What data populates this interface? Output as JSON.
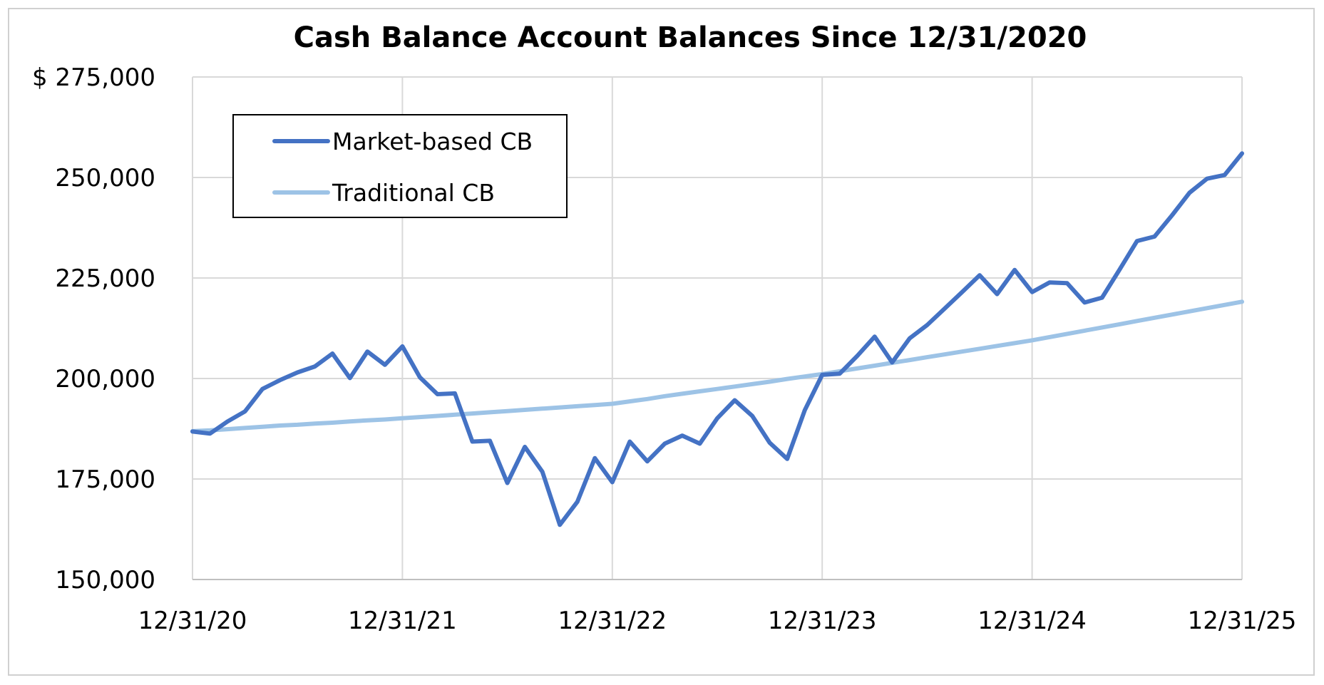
{
  "chart_data": {
    "type": "line",
    "title": "Cash Balance Account Balances Since 12/31/2020",
    "xlabel": "",
    "ylabel": "",
    "y_tick_labels": [
      "$ 275,000",
      "250,000",
      "225,000",
      "200,000",
      "175,000",
      "150,000"
    ],
    "y_ticks": [
      275000,
      250000,
      225000,
      200000,
      175000,
      150000
    ],
    "ylim": [
      150000,
      275000
    ],
    "x_tick_labels": [
      "12/31/20",
      "12/31/21",
      "12/31/22",
      "12/31/23",
      "12/31/24",
      "12/31/25"
    ],
    "x_ticks": [
      0,
      12,
      24,
      36,
      48,
      60
    ],
    "xlim": [
      0,
      60
    ],
    "grid": true,
    "legend_position": "top-left",
    "colors": {
      "market": "#4472C4",
      "traditional": "#9DC3E6",
      "grid": "#d9d9d9",
      "frame": "#d0d0d0"
    },
    "series": [
      {
        "name": "Market-based CB",
        "color": "#4472C4",
        "values": [
          186800,
          186300,
          189300,
          191800,
          197400,
          199600,
          201500,
          203000,
          206200,
          200100,
          206700,
          203400,
          208000,
          200300,
          196100,
          196300,
          184300,
          184500,
          174000,
          183000,
          176800,
          163600,
          169300,
          180200,
          174200,
          184300,
          179400,
          183800,
          185800,
          183800,
          190100,
          194600,
          190700,
          184000,
          180000,
          192100,
          200900,
          201200,
          205600,
          210400,
          204000,
          210000,
          213300,
          217400,
          221500,
          225700,
          221000,
          227000,
          221500,
          223900,
          223700,
          218900,
          220100,
          227100,
          234200,
          235300,
          240600,
          246200,
          249700,
          250600,
          256000
        ]
      },
      {
        "name": "Traditional CB",
        "color": "#9DC3E6",
        "values": [
          186900,
          187100,
          187400,
          187700,
          188000,
          188300,
          188500,
          188800,
          189000,
          189300,
          189600,
          189800,
          190100,
          190400,
          190700,
          191000,
          191300,
          191600,
          191900,
          192200,
          192500,
          192800,
          193100,
          193400,
          193700,
          194300,
          194900,
          195600,
          196200,
          196800,
          197400,
          198000,
          198600,
          199200,
          199900,
          200500,
          201100,
          201800,
          202500,
          203200,
          203900,
          204600,
          205300,
          206000,
          206700,
          207400,
          208100,
          208800,
          209500,
          210300,
          211100,
          211900,
          212700,
          213500,
          214300,
          215100,
          215900,
          216700,
          217500,
          218300,
          219100
        ]
      }
    ]
  }
}
